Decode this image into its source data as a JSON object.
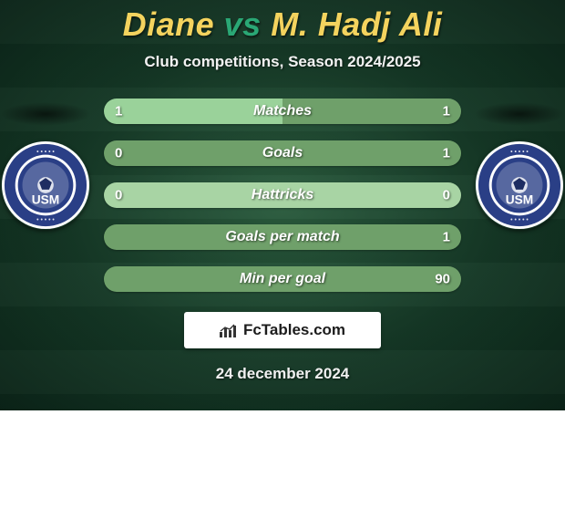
{
  "title": {
    "player1": "Diane",
    "vs": "vs",
    "player2": "M. Hadj Ali",
    "color_players": "#f4d35e",
    "color_vs": "#2aa775",
    "fontsize": 36
  },
  "subtitle": "Club competitions, Season 2024/2025",
  "bars": {
    "track_width": 392,
    "height": 28,
    "radius": 14,
    "left_color": "#9ad29a",
    "right_color": "#6fa06a",
    "empty_color": "#a8d4a4",
    "label_color": "#ffffff",
    "label_fontsize": 16,
    "value_fontsize": 15,
    "rows": [
      {
        "label": "Matches",
        "left": "1",
        "right": "1",
        "left_pct": 50,
        "right_pct": 50
      },
      {
        "label": "Goals",
        "left": "0",
        "right": "1",
        "left_pct": 0,
        "right_pct": 100
      },
      {
        "label": "Hattricks",
        "left": "0",
        "right": "0",
        "left_pct": 0,
        "right_pct": 0
      },
      {
        "label": "Goals per match",
        "left": "",
        "right": "1",
        "left_pct": 0,
        "right_pct": 100
      },
      {
        "label": "Min per goal",
        "left": "",
        "right": "90",
        "left_pct": 0,
        "right_pct": 100
      }
    ]
  },
  "crest": {
    "outer_ring": "#ffffff",
    "band": "#2a3f86",
    "inner": "#2a3f86",
    "text": "USM",
    "text_color": "#ffffff"
  },
  "branding": {
    "text": "FcTables.com",
    "bg": "#ffffff",
    "text_color": "#1c1c1c"
  },
  "date": "24 december 2024",
  "background": {
    "inner": "#2b5c3e",
    "mid": "#153826",
    "outer": "#0b2418"
  }
}
